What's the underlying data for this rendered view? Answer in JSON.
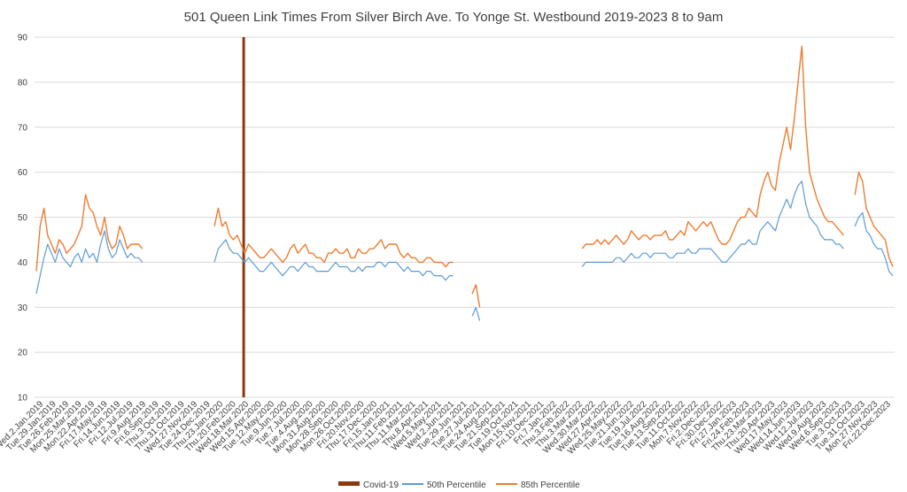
{
  "chart_data": {
    "type": "line",
    "title": "501 Queen Link Times From Silver Birch Ave. To Yonge St. Westbound 2019-2023 8 to 9am",
    "xlabel": "",
    "ylabel": "",
    "ylim": [
      10,
      90
    ],
    "yticks": [
      10,
      20,
      30,
      40,
      50,
      60,
      70,
      80,
      90
    ],
    "grid": true,
    "legend_position": "bottom",
    "colors": {
      "covid": "#8b3a0e",
      "p50": "#5b9bd5",
      "p85": "#ed7d31",
      "grid": "#d9d9d9"
    },
    "x_tick_labels": [
      "Wed.2.Jan.2019",
      "Tue.29.Jan.2019",
      "Tue.26.Feb.2019",
      "Mon.25.Mar.2019",
      "Mon.22.Apr.2019",
      "Fri.17.May.2019",
      "Fri.14.Jun.2019",
      "Fri.12.Jul.2019",
      "Fri.9.Aug.2019",
      "Fri.6.Sep.2019",
      "Thu.3.Oct.2019",
      "Thu.31.Oct.2019",
      "Wed.27.Nov.2019",
      "Tue.24.Dec.2019",
      "Thu.23.Jan.2020",
      "Thu.20.Feb.2020",
      "Wed.18.Mar.2020",
      "Wed.15.Apr.2020",
      "Tue.12.May.2020",
      "Tue.9.Jun.2020",
      "Tue.7.Jul.2020",
      "Tue.4.Aug.2020",
      "Mon.31.Aug.2020",
      "Mon.28.Sep.2020",
      "Mon.26.Oct.2020",
      "Fri.20.Nov.2020",
      "Thu.17.Dec.2020",
      "Fri.15.Jan.2021",
      "Thu.11.Feb.2021",
      "Thu.11.Mar.2021",
      "Thu.8.Apr.2021",
      "Wed.5.May.2021",
      "Wed.2.Jun.2021",
      "Tue.29.Jun.2021",
      "Tue.27.Jul.2021",
      "Tue.24.Aug.2021",
      "Tue.21.Sep.2021",
      "Tue.19.Oct.2021",
      "Mon.15.Nov.2021",
      "Fri.10.Dec.2021",
      "Fri.7.Jan.2022",
      "Thu.3.Feb.2022",
      "Thu.3.Mar.2022",
      "Wed.30.Mar.2022",
      "Wed.27.Apr.2022",
      "Wed.25.May.2022",
      "Tue.21.Jun.2022",
      "Tue.19.Jul.2022",
      "Tue.16.Aug.2022",
      "Tue.13.Sep.2022",
      "Tue.11.Oct.2022",
      "Mon.7.Nov.2022",
      "Fri.2.Dec.2022",
      "Fri.30.Dec.2022",
      "Fri.27.Jan.2023",
      "Fri.24.Feb.2023",
      "Thu.23.Mar.2023",
      "Thu.20.Apr.2023",
      "Wed.17.May.2023",
      "Wed.14.Jun.2023",
      "Wed.12.Jul.2023",
      "Wed.9.Aug.2023",
      "Wed.6.Sep.2023",
      "Tue.3.Oct.2023",
      "Tue.31.Oct.2023",
      "Mon.27.Nov.2023",
      "Fri.22.Dec.2023"
    ],
    "covid_marker": {
      "category": "Fri.13.Mar.2020",
      "value": 90
    },
    "series": [
      {
        "name": "50th Percentile",
        "values": [
          33,
          37,
          41,
          44,
          42,
          40,
          43,
          41,
          40,
          39,
          41,
          42,
          40,
          43,
          41,
          42,
          40,
          44,
          47,
          43,
          41,
          42,
          45,
          43,
          41,
          42,
          41,
          41,
          40,
          null,
          null,
          null,
          null,
          null,
          null,
          null,
          null,
          null,
          null,
          null,
          null,
          null,
          null,
          null,
          null,
          null,
          null,
          40,
          43,
          44,
          45,
          43,
          42,
          42,
          41,
          40,
          41,
          40,
          39,
          38,
          38,
          39,
          40,
          39,
          38,
          37,
          38,
          39,
          39,
          38,
          39,
          40,
          39,
          39,
          38,
          38,
          38,
          38,
          39,
          40,
          39,
          39,
          39,
          38,
          38,
          39,
          38,
          39,
          39,
          39,
          40,
          40,
          39,
          40,
          40,
          40,
          39,
          38,
          39,
          38,
          38,
          38,
          37,
          38,
          38,
          37,
          37,
          37,
          36,
          37,
          37,
          null,
          null,
          null,
          null,
          28,
          30,
          27,
          null,
          null,
          null,
          null,
          null,
          null,
          null,
          null,
          null,
          null,
          null,
          null,
          null,
          null,
          null,
          null,
          null,
          null,
          null,
          null,
          null,
          null,
          null,
          null,
          null,
          null,
          39,
          40,
          40,
          40,
          40,
          40,
          40,
          40,
          40,
          41,
          41,
          40,
          41,
          42,
          41,
          41,
          42,
          42,
          41,
          42,
          42,
          42,
          42,
          41,
          41,
          42,
          42,
          42,
          43,
          42,
          42,
          43,
          43,
          43,
          43,
          42,
          41,
          40,
          40,
          41,
          42,
          43,
          44,
          44,
          45,
          44,
          44,
          47,
          48,
          49,
          48,
          47,
          50,
          52,
          54,
          52,
          55,
          57,
          58,
          53,
          50,
          49,
          48,
          46,
          45,
          45,
          45,
          44,
          44,
          43,
          null,
          null,
          48,
          50,
          51,
          47,
          46,
          44,
          43,
          43,
          41,
          38,
          37
        ]
      },
      {
        "name": "85th Percentile",
        "values": [
          38,
          48,
          52,
          46,
          44,
          42,
          45,
          44,
          42,
          43,
          44,
          46,
          48,
          55,
          52,
          51,
          48,
          46,
          50,
          45,
          43,
          44,
          48,
          46,
          43,
          44,
          44,
          44,
          43,
          null,
          null,
          null,
          null,
          null,
          null,
          null,
          null,
          null,
          null,
          null,
          null,
          null,
          null,
          null,
          null,
          null,
          null,
          48,
          52,
          48,
          49,
          46,
          45,
          46,
          44,
          42,
          44,
          43,
          42,
          41,
          41,
          42,
          43,
          42,
          41,
          40,
          41,
          43,
          44,
          42,
          43,
          44,
          42,
          42,
          41,
          41,
          40,
          42,
          42,
          43,
          42,
          42,
          43,
          41,
          41,
          43,
          42,
          42,
          43,
          43,
          44,
          45,
          43,
          44,
          44,
          44,
          42,
          41,
          42,
          41,
          41,
          40,
          40,
          41,
          41,
          40,
          40,
          40,
          39,
          40,
          40,
          null,
          null,
          null,
          null,
          33,
          35,
          30,
          null,
          null,
          null,
          null,
          null,
          null,
          null,
          null,
          null,
          null,
          null,
          null,
          null,
          null,
          null,
          null,
          null,
          null,
          null,
          null,
          null,
          null,
          null,
          null,
          null,
          null,
          43,
          44,
          44,
          44,
          45,
          44,
          45,
          44,
          45,
          46,
          45,
          44,
          45,
          47,
          46,
          45,
          46,
          46,
          45,
          46,
          46,
          46,
          47,
          45,
          45,
          46,
          47,
          46,
          49,
          48,
          47,
          48,
          49,
          48,
          49,
          47,
          45,
          44,
          44,
          45,
          47,
          49,
          50,
          50,
          52,
          51,
          50,
          55,
          58,
          60,
          57,
          56,
          62,
          66,
          70,
          65,
          72,
          80,
          88,
          70,
          60,
          57,
          54,
          52,
          50,
          49,
          49,
          48,
          47,
          46,
          null,
          null,
          55,
          60,
          58,
          52,
          50,
          48,
          47,
          46,
          45,
          41,
          39
        ]
      }
    ]
  }
}
